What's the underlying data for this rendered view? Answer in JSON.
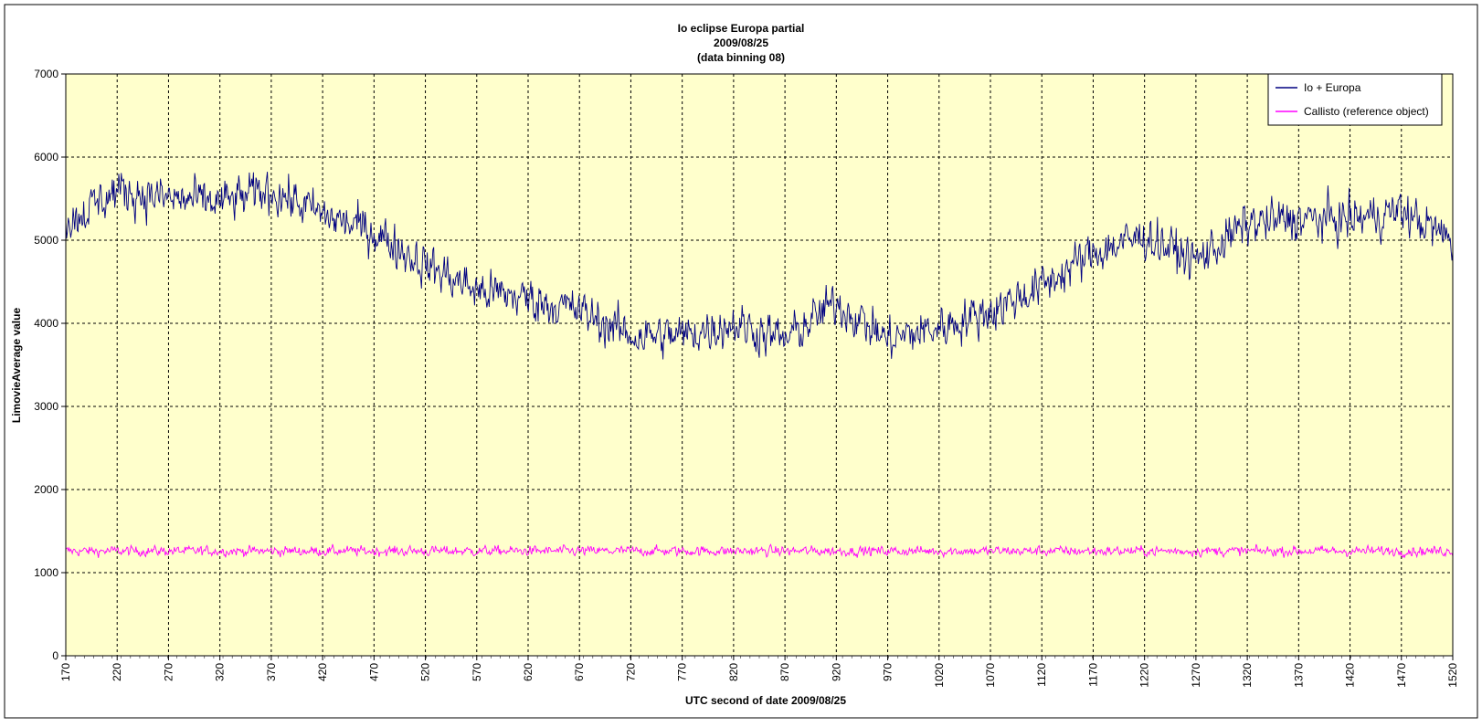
{
  "chart_data": {
    "type": "line",
    "title_lines": [
      "Io eclipse Europa partial",
      "2009/08/25",
      "(data binning 08)"
    ],
    "xlabel": "UTC second  of date 2009/08/25",
    "ylabel": "LimovieAverage value",
    "xlim": [
      170,
      1520
    ],
    "ylim": [
      0,
      7000
    ],
    "x_ticks": [
      170,
      220,
      270,
      320,
      370,
      420,
      470,
      520,
      570,
      620,
      670,
      720,
      770,
      820,
      870,
      920,
      970,
      1020,
      1070,
      1120,
      1170,
      1220,
      1270,
      1320,
      1370,
      1420,
      1470,
      1520
    ],
    "y_ticks": [
      0,
      1000,
      2000,
      3000,
      4000,
      5000,
      6000,
      7000
    ],
    "y_tick_labels": [
      "0",
      "1000",
      "2000",
      "3000",
      "4000",
      "5000",
      "6000",
      "7000"
    ],
    "grid": true,
    "legend_position": "top-right",
    "plot_background": "#ffffcc",
    "series": [
      {
        "name": "Io + Europa",
        "color": "#000080",
        "trend_x": [
          170,
          220,
          270,
          320,
          370,
          420,
          470,
          520,
          570,
          620,
          670,
          720,
          770,
          820,
          870,
          920,
          970,
          1020,
          1070,
          1120,
          1170,
          1220,
          1270,
          1320,
          1370,
          1420,
          1470,
          1520
        ],
        "trend_y": [
          5200,
          5600,
          5500,
          5450,
          5600,
          5300,
          5100,
          4700,
          4400,
          4300,
          4150,
          3850,
          3850,
          4000,
          3800,
          4250,
          3800,
          3950,
          4150,
          4450,
          4850,
          5050,
          4750,
          5200,
          5250,
          5250,
          5350,
          5000
        ],
        "noise_amplitude": 420
      },
      {
        "name": "Callisto (reference object)",
        "color": "#ff00ff",
        "trend_x": [
          170,
          1520
        ],
        "trend_y": [
          1260,
          1260
        ],
        "noise_amplitude": 95
      }
    ]
  }
}
